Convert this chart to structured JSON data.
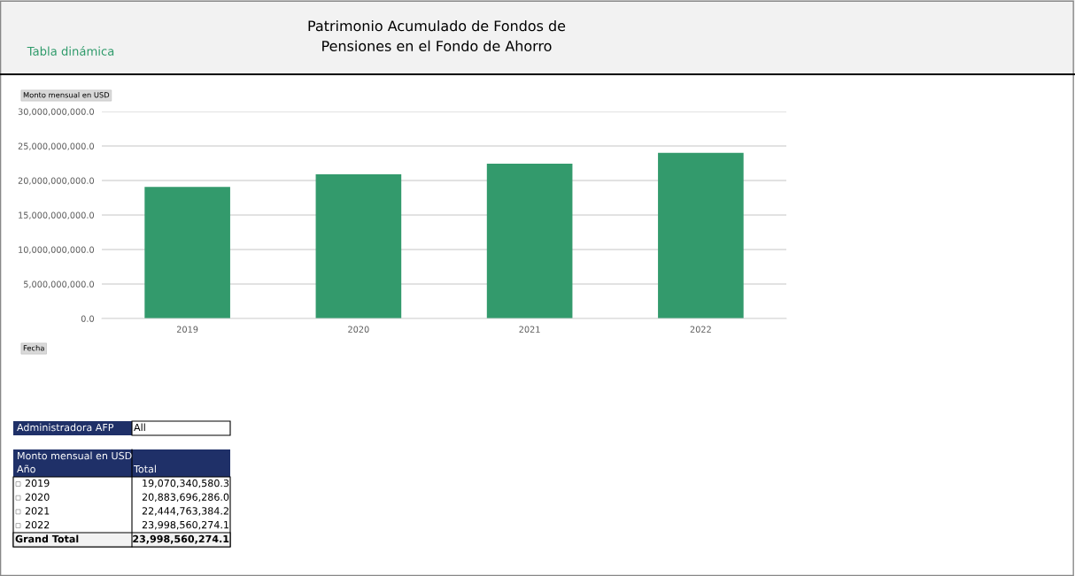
{
  "chart_data": {
    "type": "bar",
    "title": "Patrimonio Acumulado de Fondos de\nPensiones en el Fondo de Ahorro",
    "ylabel": "Monto mensual en USD",
    "categories": [
      "2019",
      "2020",
      "2021",
      "2022"
    ],
    "values": [
      19070340580.3,
      20883696286.0,
      22444763384.2,
      23998560274.1
    ],
    "color": "#339a6c",
    "ylim": [
      0,
      30000000000
    ],
    "yticks": [
      {
        "value": 0,
        "label": "0.0"
      },
      {
        "value": 5000000000,
        "label": "5,000,000,000.0"
      },
      {
        "value": 10000000000,
        "label": "10,000,000,000.0"
      },
      {
        "value": 15000000000,
        "label": "15,000,000,000.0"
      },
      {
        "value": 20000000000,
        "label": "20,000,000,000.0"
      },
      {
        "value": 25000000000,
        "label": "25,000,000,000.0"
      },
      {
        "value": 30000000000,
        "label": "30,000,000,000.0"
      }
    ],
    "grid": "y",
    "annotations": [
      "Tabla dinámica",
      "Fecha",
      "Administradora AFP",
      "All",
      "Monto mensual en USD",
      "Año",
      "Total",
      "Grand Total",
      "23,998,560,274.1",
      "19,070,340,580.3",
      "20,883,696,286.0",
      "22,444,763,384.2",
      "23,998,560,274.1"
    ]
  }
}
